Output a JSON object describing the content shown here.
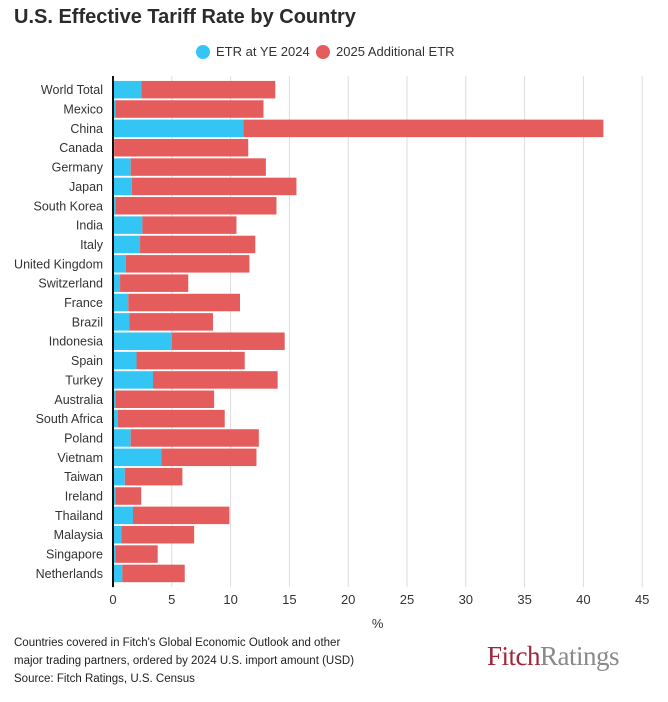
{
  "title": "U.S. Effective Tariff Rate by Country",
  "colors": {
    "etr_2024": "#33c6f4",
    "additional_2025": "#e55c5c"
  },
  "footnote": {
    "line1": "Countries covered in Fitch's Global Economic Outlook and other",
    "line2": "major trading partners, ordered by 2024 U.S.  import amount (USD)",
    "line3": "Source: Fitch Ratings, U.S. Census"
  },
  "brand": {
    "part1": "Fitch",
    "part2": "Ratings"
  },
  "chart_data": {
    "type": "bar",
    "orientation": "horizontal",
    "stacked": true,
    "title": "U.S. Effective Tariff Rate by Country",
    "xlabel": "%",
    "xlim": [
      0,
      45
    ],
    "xticks": [
      0,
      5,
      10,
      15,
      20,
      25,
      30,
      35,
      40,
      45
    ],
    "grid": true,
    "legend_position": "top",
    "categories": [
      "World Total",
      "Mexico",
      "China",
      "Canada",
      "Germany",
      "Japan",
      "South Korea",
      "India",
      "Italy",
      "United Kingdom",
      "Switzerland",
      "France",
      "Brazil",
      "Indonesia",
      "Spain",
      "Turkey",
      "Australia",
      "South Africa",
      "Poland",
      "Vietnam",
      "Taiwan",
      "Ireland",
      "Thailand",
      "Malaysia",
      "Singapore",
      "Netherlands"
    ],
    "series": [
      {
        "name": "ETR at YE 2024",
        "values": [
          2.4,
          0.2,
          11.1,
          0.1,
          1.5,
          1.6,
          0.2,
          2.5,
          2.3,
          1.1,
          0.6,
          1.3,
          1.4,
          5.0,
          2.0,
          3.4,
          0.2,
          0.4,
          1.5,
          4.1,
          1.0,
          0.2,
          1.7,
          0.7,
          0.2,
          0.8
        ]
      },
      {
        "name": "2025 Additional ETR",
        "values": [
          11.4,
          12.6,
          30.6,
          11.4,
          11.5,
          14.0,
          13.7,
          8.0,
          9.8,
          10.5,
          5.8,
          9.5,
          7.1,
          9.6,
          9.2,
          10.6,
          8.4,
          9.1,
          10.9,
          8.1,
          4.9,
          2.2,
          8.2,
          6.2,
          3.6,
          5.3
        ]
      }
    ]
  }
}
